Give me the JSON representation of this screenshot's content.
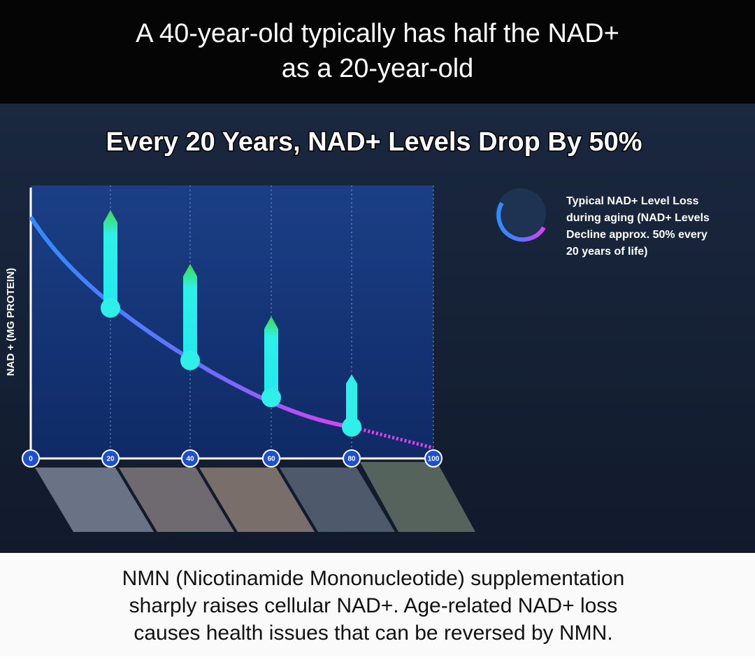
{
  "header": {
    "lines": [
      "A 40-year-old typically has half the NAD+",
      "as a 20-year-old"
    ]
  },
  "infographic": {
    "title": "Every 20 Years, NAD+ Levels Drop By 50%",
    "y_axis_label": "NAD + (MG PROTEIN)",
    "x_ticks": [
      "0",
      "20",
      "40",
      "60",
      "80",
      "100"
    ],
    "legend": {
      "lines": [
        "Typical NAD+ Level Loss",
        "during aging (NAD+ Levels",
        "Decline approx. 50% every",
        "20 years of life)"
      ]
    }
  },
  "footer": {
    "lines": [
      "NMN (Nicotinamide Mononucleotide) supplementation",
      "sharply raises cellular NAD+. Age-related NAD+ loss",
      "causes health issues that can be reversed by NMN."
    ]
  }
}
